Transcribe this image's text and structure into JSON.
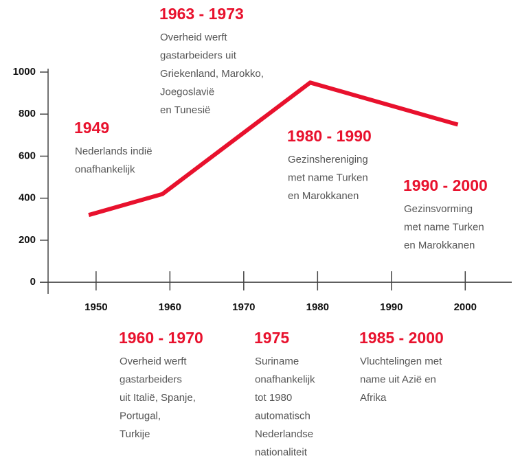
{
  "chart_data": {
    "type": "line",
    "x": [
      1949,
      1959,
      1979,
      1999
    ],
    "values": [
      320,
      420,
      950,
      750
    ],
    "color": "#e8112d",
    "xlim": [
      1943.5,
      2006.3
    ],
    "ylim": [
      -55,
      1000
    ],
    "xticks": [
      1950,
      1960,
      1970,
      1980,
      1990,
      2000
    ],
    "yticks": [
      0,
      200,
      400,
      600,
      800,
      1000
    ],
    "annotations": [
      {
        "title": "1963 - 1973",
        "lines": [
          "Overheid werft",
          "gastarbeiders uit",
          "Griekenland, Marokko,",
          "Joegoslavië",
          "en Tunesië"
        ]
      },
      {
        "title": "1949",
        "lines": [
          "Nederlands indië",
          "onafhankelijk"
        ]
      },
      {
        "title": "1980 - 1990",
        "lines": [
          "Gezinshereniging",
          "met name Turken",
          "en Marokkanen"
        ]
      },
      {
        "title": "1990 - 2000",
        "lines": [
          "Gezinsvorming",
          "met name Turken",
          "en Marokkanen"
        ]
      },
      {
        "title": "1960 - 1970",
        "lines": [
          "Overheid werft",
          "gastarbeiders",
          "uit Italië, Spanje,",
          "Portugal,",
          "Turkije"
        ]
      },
      {
        "title": "1975",
        "lines": [
          "Suriname",
          "onafhankelijk",
          "tot 1980",
          "automatisch",
          "Nederlandse",
          "nationaliteit"
        ]
      },
      {
        "title": "1985 - 2000",
        "lines": [
          "Vluchtelingen met",
          "name uit Azië en",
          "Afrika"
        ]
      }
    ]
  }
}
